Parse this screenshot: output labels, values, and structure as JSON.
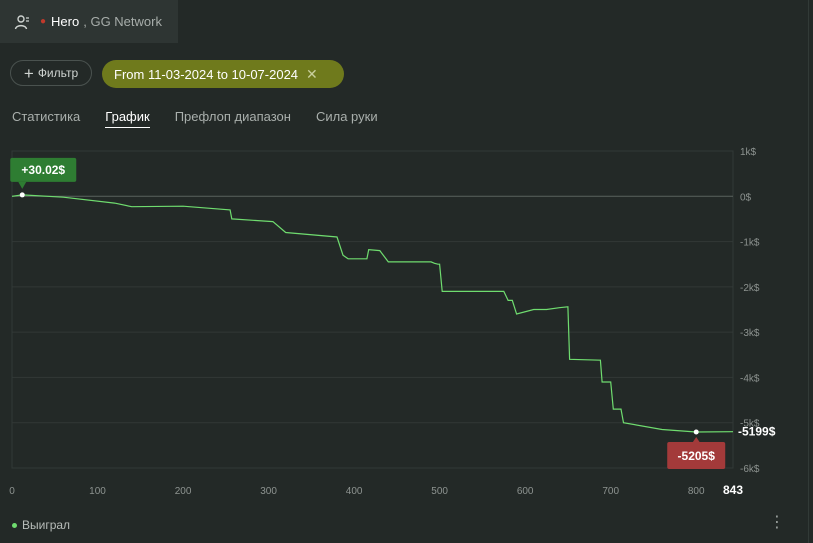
{
  "header": {
    "hero_label": "Hero",
    "network_label": ", GG Network"
  },
  "filters": {
    "filter_button": "Фильтр",
    "date_range": "From 11-03-2024 to 10-07-2024"
  },
  "tabs": [
    {
      "label": "Статистика",
      "active": false
    },
    {
      "label": "График",
      "active": true
    },
    {
      "label": "Префлоп диапазон",
      "active": false
    },
    {
      "label": "Сила руки",
      "active": false
    }
  ],
  "chart_data": {
    "type": "line",
    "x_range": [
      0,
      843
    ],
    "y_range": [
      -6000,
      1000
    ],
    "x_ticks": [
      "0",
      "100",
      "200",
      "300",
      "400",
      "500",
      "600",
      "700",
      "800"
    ],
    "x_end_label": "843",
    "y_ticks": [
      {
        "value": 1000,
        "label": "1k$"
      },
      {
        "value": 0,
        "label": "0$"
      },
      {
        "value": -1000,
        "label": "-1k$"
      },
      {
        "value": -2000,
        "label": "-2k$"
      },
      {
        "value": -3000,
        "label": "-3k$"
      },
      {
        "value": -4000,
        "label": "-4k$"
      },
      {
        "value": -5000,
        "label": "-5k$"
      },
      {
        "value": -6000,
        "label": "-6k$"
      }
    ],
    "series": [
      {
        "color": "#6fdc6f",
        "points": [
          [
            0,
            0
          ],
          [
            12,
            30
          ],
          [
            60,
            -20
          ],
          [
            120,
            -150
          ],
          [
            140,
            -230
          ],
          [
            200,
            -220
          ],
          [
            255,
            -300
          ],
          [
            257,
            -500
          ],
          [
            305,
            -560
          ],
          [
            320,
            -800
          ],
          [
            380,
            -900
          ],
          [
            387,
            -1300
          ],
          [
            393,
            -1380
          ],
          [
            415,
            -1380
          ],
          [
            417,
            -1180
          ],
          [
            430,
            -1200
          ],
          [
            440,
            -1450
          ],
          [
            490,
            -1450
          ],
          [
            494,
            -1480
          ],
          [
            498,
            -1500
          ],
          [
            500,
            -1500
          ],
          [
            503,
            -2100
          ],
          [
            575,
            -2100
          ],
          [
            580,
            -2300
          ],
          [
            585,
            -2300
          ],
          [
            590,
            -2600
          ],
          [
            610,
            -2500
          ],
          [
            625,
            -2500
          ],
          [
            640,
            -2460
          ],
          [
            650,
            -2440
          ],
          [
            652,
            -3600
          ],
          [
            688,
            -3620
          ],
          [
            690,
            -4100
          ],
          [
            700,
            -4100
          ],
          [
            703,
            -4700
          ],
          [
            712,
            -4700
          ],
          [
            715,
            -5000
          ],
          [
            760,
            -5150
          ],
          [
            800,
            -5205
          ],
          [
            843,
            -5199
          ]
        ]
      }
    ],
    "max_annotation": {
      "x": 12,
      "y": 30.02,
      "label": "+30.02$"
    },
    "min_annotation": {
      "x": 800,
      "y": -5205,
      "label": "-5205$"
    },
    "end_label": "-5199$"
  },
  "legend": {
    "label": "Выиграл"
  },
  "colors": {
    "accent_chip": "#6f7a1c",
    "line": "#6fdc6f",
    "max_badge": "#2e7d32",
    "min_badge": "#a33a3a"
  }
}
